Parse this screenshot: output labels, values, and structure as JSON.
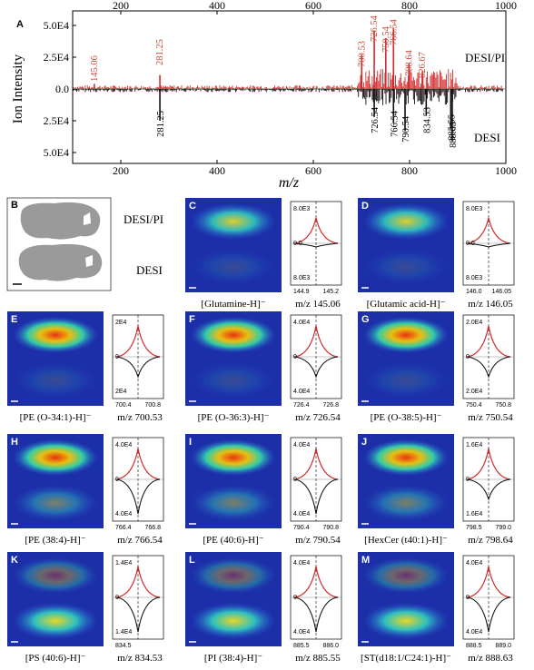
{
  "colors": {
    "desi_pi": "#d42a2a",
    "desi": "#111111",
    "brain_bg": "#1c2fa8",
    "mzlabel_red": "#c44a3a"
  },
  "panel_a": {
    "letter": "A",
    "ylabel": "Ion Intensity",
    "xlabel": "m/z",
    "top_ticks": [
      "200",
      "400",
      "600",
      "800",
      "1000"
    ],
    "bottom_ticks": [
      "200",
      "400",
      "600",
      "800",
      "1000"
    ],
    "y_ticks": [
      "5.0E4",
      "2.5E4",
      "0.0",
      "2.5E4",
      "5.0E4"
    ],
    "legend_top": "DESI/PI",
    "legend_bottom": "DESI",
    "top_labels": [
      "145.06",
      "281.25",
      "700.53",
      "726.54",
      "750.54",
      "766.54",
      "798.64",
      "826.67"
    ],
    "bottom_labels": [
      "281.25",
      "726.54",
      "766.54",
      "790.54",
      "834.53",
      "885.55",
      "888.63"
    ]
  },
  "chart_data": {
    "type": "bar",
    "title": "",
    "xlabel": "m/z",
    "ylabel": "Ion Intensity",
    "xlim": [
      100,
      1000
    ],
    "ylim": [
      -50000,
      50000
    ],
    "series": [
      {
        "name": "DESI/PI",
        "x": [
          145.06,
          281.25,
          700.53,
          726.54,
          750.54,
          766.54,
          798.64,
          826.67
        ],
        "values": [
          4000,
          11000,
          27000,
          46000,
          40000,
          48000,
          20000,
          14000
        ]
      },
      {
        "name": "DESI",
        "x": [
          281.25,
          726.54,
          766.54,
          790.54,
          834.53,
          885.55,
          888.63
        ],
        "values": [
          -25000,
          -22000,
          -27000,
          -33000,
          -21000,
          -31000,
          -41000
        ]
      }
    ]
  },
  "panel_b": {
    "letter": "B",
    "label_top": "DESI/PI",
    "label_bottom": "DESI"
  },
  "panels": [
    {
      "letter": "C",
      "caption": "[Glutamine-H]⁻",
      "mz": "m/z 145.06",
      "yt": "8.0E3",
      "ym": "0.0",
      "yb": "8.0E3",
      "x1": "144.9",
      "x2": "145.2"
    },
    {
      "letter": "D",
      "caption": "[Glutamic acid-H]⁻",
      "mz": "m/z 146.05",
      "yt": "8.0E3",
      "ym": "0.0",
      "yb": "8.0E3",
      "x1": "146.0",
      "x2": "146.05"
    },
    {
      "letter": "E",
      "caption": "[PE (O-34:1)-H]⁻",
      "mz": "m/z 700.53",
      "yt": "2E4",
      "ym": "0",
      "yb": "2E4",
      "x1": "700.4",
      "x2": "700.8"
    },
    {
      "letter": "F",
      "caption": "[PE (O-36:3)-H]⁻",
      "mz": "m/z 726.54",
      "yt": "4.0E4",
      "ym": "0",
      "yb": "4.0E4",
      "x1": "726.4",
      "x2": "726.8"
    },
    {
      "letter": "G",
      "caption": "[PE (O-38:5)-H]⁻",
      "mz": "m/z 750.54",
      "yt": "2.0E4",
      "ym": "0",
      "yb": "2.0E4",
      "x1": "750.4",
      "x2": "750.8"
    },
    {
      "letter": "H",
      "caption": "[PE (38:4)-H]⁻",
      "mz": "m/z 766.54",
      "yt": "4.0E4",
      "ym": "0",
      "yb": "4.0E4",
      "x1": "766.4",
      "x2": "766.8"
    },
    {
      "letter": "I",
      "caption": "[PE (40:6)-H]⁻",
      "mz": "m/z 790.54",
      "yt": "4.0E4",
      "ym": "0",
      "yb": "4.0E4",
      "x1": "790.4",
      "x2": "790.8"
    },
    {
      "letter": "J",
      "caption": "[HexCer (t40:1)-H]⁻",
      "mz": "m/z 798.64",
      "yt": "1.6E4",
      "ym": "0",
      "yb": "1.6E4",
      "x1": "798.5",
      "x2": "799.0"
    },
    {
      "letter": "K",
      "caption": "[PS (40:6)-H]⁻",
      "mz": "m/z 834.53",
      "yt": "1.4E4",
      "ym": "0",
      "yb": "1.4E4",
      "x1": "834.5",
      "x2": ""
    },
    {
      "letter": "L",
      "caption": "[PI (38:4)-H]⁻",
      "mz": "m/z 885.55",
      "yt": "4.0E4",
      "ym": "0",
      "yb": "4.0E4",
      "x1": "885.5",
      "x2": "886.0"
    },
    {
      "letter": "M",
      "caption": "[ST(d18:1/C24:1)-H]⁻",
      "mz": "m/z 888.63",
      "yt": "4.0E4",
      "ym": "0",
      "yb": "4.0E4",
      "x1": "888.5",
      "x2": "889.0"
    }
  ]
}
